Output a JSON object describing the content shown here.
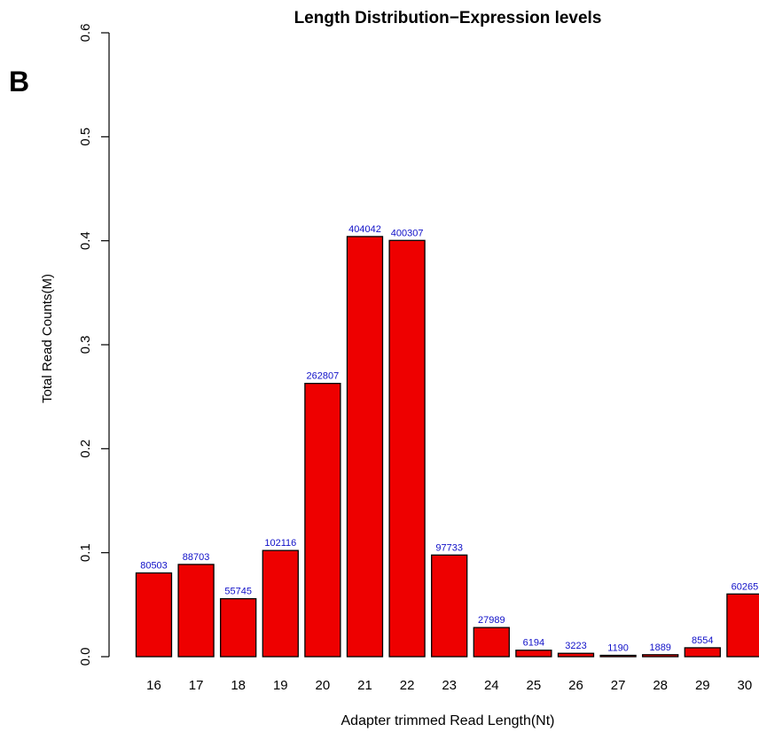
{
  "panel_label": "B",
  "chart_data": {
    "type": "bar",
    "title": "Length Distribution−Expression levels",
    "xlabel": "Adapter trimmed Read Length(Nt)",
    "ylabel": "Total Read Counts(M)",
    "categories": [
      "16",
      "17",
      "18",
      "19",
      "20",
      "21",
      "22",
      "23",
      "24",
      "25",
      "26",
      "27",
      "28",
      "29",
      "30"
    ],
    "values": [
      0.080503,
      0.088703,
      0.055745,
      0.102116,
      0.262807,
      0.404042,
      0.400307,
      0.097733,
      0.027989,
      0.006194,
      0.003223,
      0.00119,
      0.001889,
      0.008554,
      0.060265
    ],
    "data_labels": [
      "80503",
      "88703",
      "55745",
      "102116",
      "262807",
      "404042",
      "400307",
      "97733",
      "27989",
      "6194",
      "3223",
      "1190",
      "1889",
      "8554",
      "60265"
    ],
    "ylim": [
      0,
      0.6
    ],
    "yticks": [
      0.0,
      0.1,
      0.2,
      0.3,
      0.4,
      0.5,
      0.6
    ],
    "ytick_labels": [
      "0.0",
      "0.1",
      "0.2",
      "0.3",
      "0.4",
      "0.5",
      "0.6"
    ],
    "grid": false,
    "colors": {
      "bar": "#ee0000",
      "bar_edge": "#000000",
      "data_label": "#1010c8"
    }
  }
}
